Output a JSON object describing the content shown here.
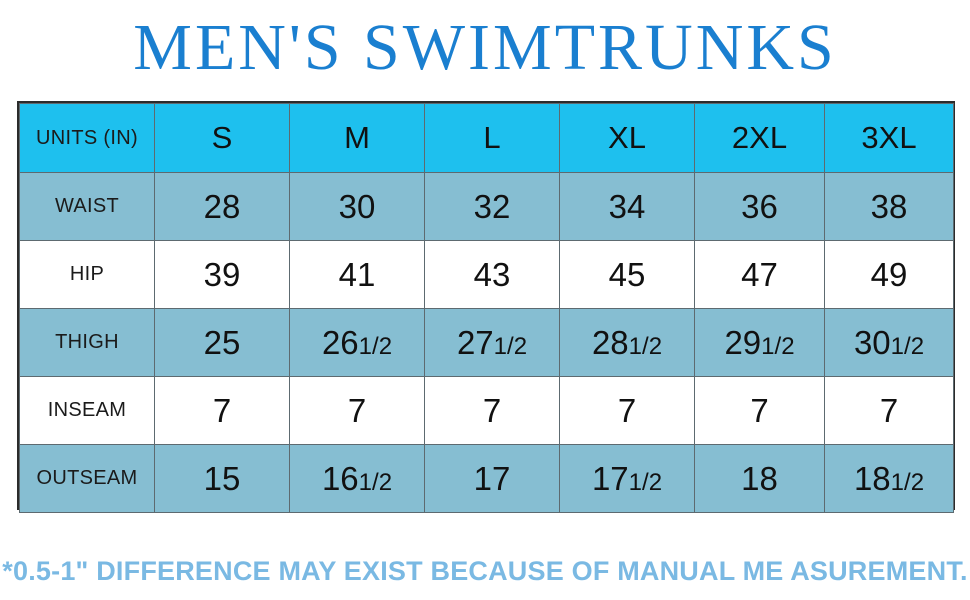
{
  "title": "MEN'S SWIMTRUNKS",
  "table": {
    "header_label": "UNITS (IN)",
    "sizes": [
      "S",
      "M",
      "L",
      "XL",
      "2XL",
      "3XL"
    ],
    "rows": [
      {
        "label": "WAIST",
        "values": [
          {
            "whole": "28",
            "frac": ""
          },
          {
            "whole": "30",
            "frac": ""
          },
          {
            "whole": "32",
            "frac": ""
          },
          {
            "whole": "34",
            "frac": ""
          },
          {
            "whole": "36",
            "frac": ""
          },
          {
            "whole": "38",
            "frac": ""
          }
        ]
      },
      {
        "label": "HIP",
        "values": [
          {
            "whole": "39",
            "frac": ""
          },
          {
            "whole": "41",
            "frac": ""
          },
          {
            "whole": "43",
            "frac": ""
          },
          {
            "whole": "45",
            "frac": ""
          },
          {
            "whole": "47",
            "frac": ""
          },
          {
            "whole": "49",
            "frac": ""
          }
        ]
      },
      {
        "label": "THIGH",
        "values": [
          {
            "whole": "25",
            "frac": ""
          },
          {
            "whole": "26",
            "frac": "1/2"
          },
          {
            "whole": "27",
            "frac": "1/2"
          },
          {
            "whole": "28",
            "frac": "1/2"
          },
          {
            "whole": "29",
            "frac": "1/2"
          },
          {
            "whole": "30",
            "frac": "1/2"
          }
        ]
      },
      {
        "label": "INSEAM",
        "values": [
          {
            "whole": "7",
            "frac": ""
          },
          {
            "whole": "7",
            "frac": ""
          },
          {
            "whole": "7",
            "frac": ""
          },
          {
            "whole": "7",
            "frac": ""
          },
          {
            "whole": "7",
            "frac": ""
          },
          {
            "whole": "7",
            "frac": ""
          }
        ]
      },
      {
        "label": "OUTSEAM",
        "values": [
          {
            "whole": "15",
            "frac": ""
          },
          {
            "whole": "16",
            "frac": "1/2"
          },
          {
            "whole": "17",
            "frac": ""
          },
          {
            "whole": "17",
            "frac": "1/2"
          },
          {
            "whole": "18",
            "frac": ""
          },
          {
            "whole": "18",
            "frac": "1/2"
          }
        ]
      }
    ]
  },
  "footnote": "*0.5-1\" DIFFERENCE MAY EXIST BECAUSE OF MANUAL ME ASUREMENT.",
  "colors": {
    "title": "#1a7fd0",
    "header_band": "#1ec0ee",
    "shaded_row": "#86bed2",
    "plain_row": "#ffffff",
    "footnote": "#7ab9e3"
  }
}
